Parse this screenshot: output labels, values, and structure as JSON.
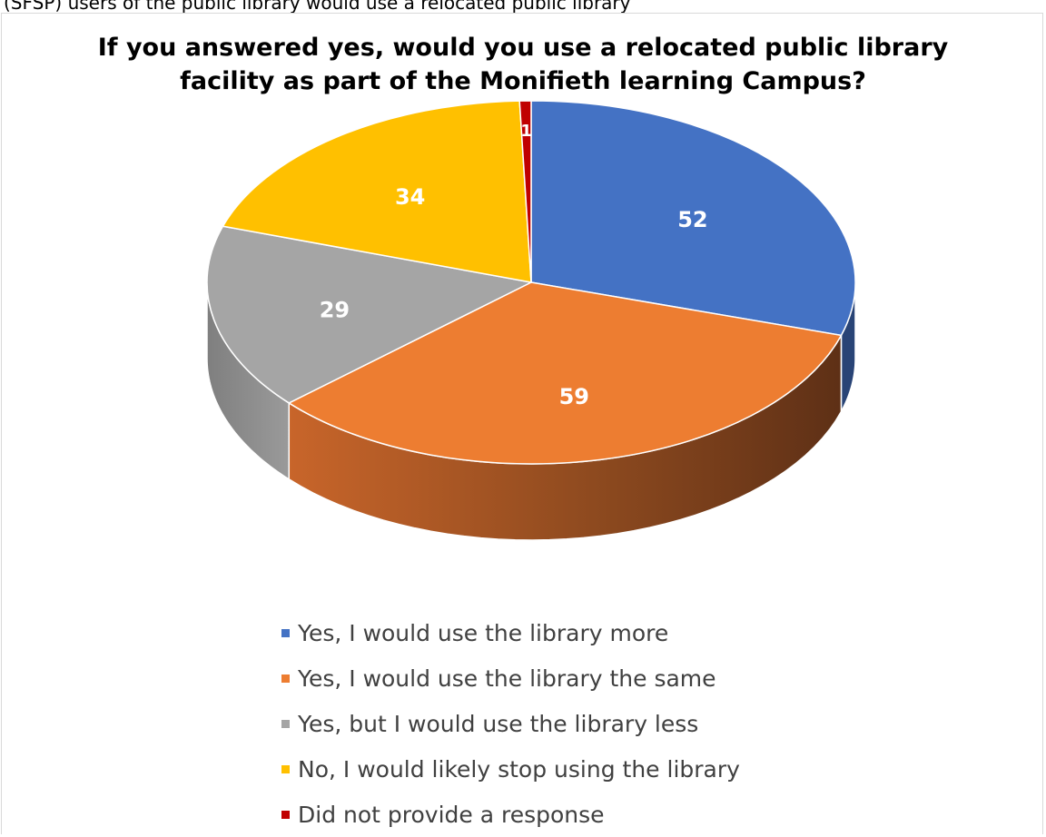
{
  "top_strip_text": "(SFSP) users of the public library would use a relocated public library",
  "chart_data": {
    "type": "pie",
    "title_lines": [
      "If you answered yes, would you use a relocated public library",
      "facility as part of the Monifieth learning Campus?"
    ],
    "style": "3d",
    "legend_placement": "bottom",
    "categories": [
      "Yes, I would use the library more",
      "Yes, I would use the library the same",
      "Yes, but I would use the library less",
      "No, I would likely stop using the library",
      "Did not provide a response"
    ],
    "values": [
      52,
      59,
      29,
      34,
      1
    ],
    "colors": [
      "#4472C4",
      "#ED7D31",
      "#A5A5A5",
      "#FFC000",
      "#C00000"
    ],
    "data_labels": [
      "52",
      "59",
      "29",
      "34",
      "1"
    ]
  }
}
